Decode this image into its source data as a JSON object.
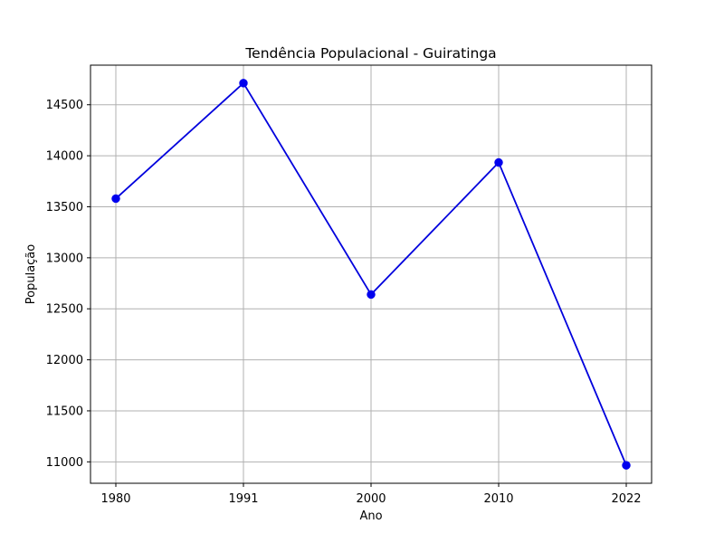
{
  "chart_data": {
    "type": "line",
    "title": "Tendência Populacional - Guiratinga",
    "xlabel": "Ano",
    "ylabel": "População",
    "categories": [
      "1980",
      "1991",
      "2000",
      "2010",
      "2022"
    ],
    "series": [
      {
        "values": [
          13580,
          14712,
          12640,
          13934,
          10966
        ]
      }
    ],
    "yticks": [
      11000,
      11500,
      12000,
      12500,
      13000,
      13500,
      14000,
      14500
    ],
    "ylim": [
      10790,
      14888
    ],
    "grid": true,
    "line_color": "#0000dd",
    "marker_color": "#0000ee",
    "marker": "circle"
  }
}
